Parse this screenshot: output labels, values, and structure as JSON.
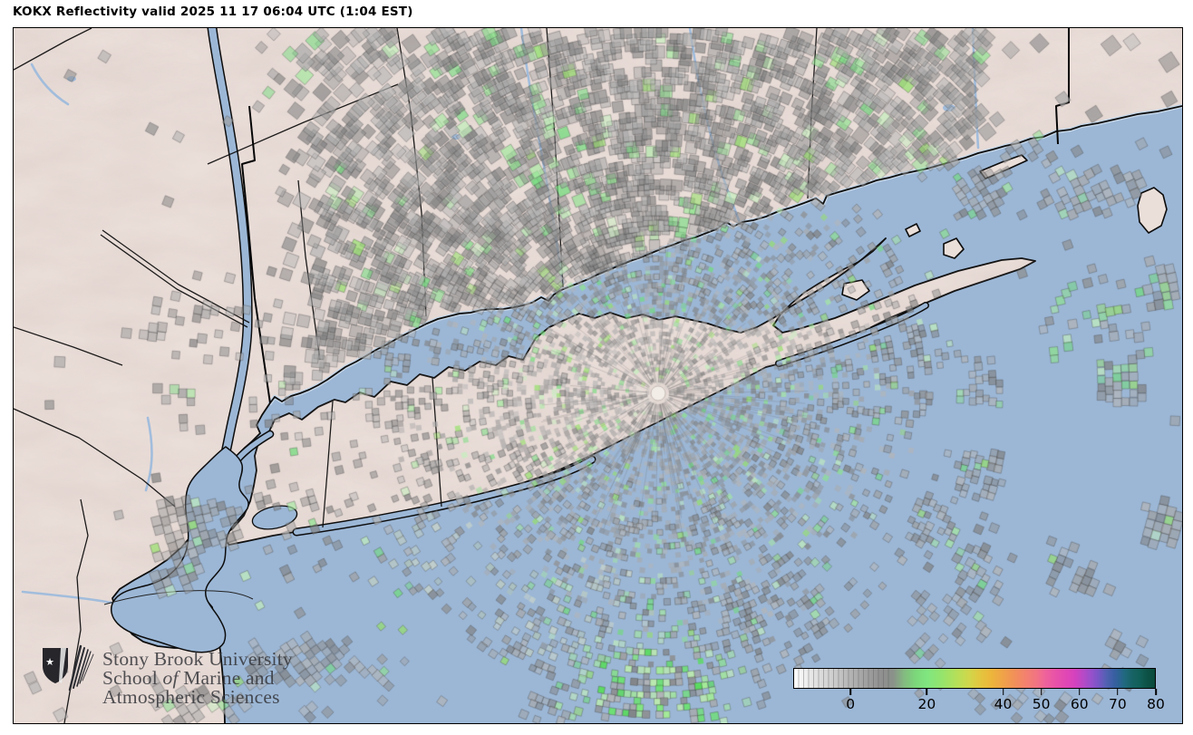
{
  "header": {
    "title": "KOKX Reflectivity valid 2025 11 17 06:04 UTC (1:04 EST)"
  },
  "radar": {
    "site": "KOKX",
    "product": "Reflectivity",
    "valid_utc": "2025 11 17 06:04 UTC",
    "valid_local": "1:04 EST"
  },
  "colorbar": {
    "min": -15,
    "max": 80,
    "tick_labels": [
      "0",
      "20",
      "40",
      "50",
      "60",
      "70",
      "80"
    ],
    "tick_values": [
      0,
      20,
      40,
      50,
      60,
      70,
      80
    ],
    "stops": [
      {
        "v": -15,
        "c": "#ffffff"
      },
      {
        "v": -10,
        "c": "#e4e4e4"
      },
      {
        "v": -5,
        "c": "#cfcfcf"
      },
      {
        "v": 0,
        "c": "#b3b3b3"
      },
      {
        "v": 5,
        "c": "#9c9c9c"
      },
      {
        "v": 8,
        "c": "#909090"
      },
      {
        "v": 11,
        "c": "#8a908a"
      },
      {
        "v": 14,
        "c": "#83bb80"
      },
      {
        "v": 17,
        "c": "#7cd77a"
      },
      {
        "v": 20,
        "c": "#80e680"
      },
      {
        "v": 24,
        "c": "#95e46c"
      },
      {
        "v": 28,
        "c": "#b8df58"
      },
      {
        "v": 31,
        "c": "#d0d74b"
      },
      {
        "v": 34,
        "c": "#e3c63f"
      },
      {
        "v": 37,
        "c": "#edb53b"
      },
      {
        "v": 40,
        "c": "#f0a348"
      },
      {
        "v": 43,
        "c": "#f19059"
      },
      {
        "v": 46,
        "c": "#f3816f"
      },
      {
        "v": 49,
        "c": "#f27384"
      },
      {
        "v": 51,
        "c": "#ef639a"
      },
      {
        "v": 54,
        "c": "#e851a9"
      },
      {
        "v": 57,
        "c": "#e046b6"
      },
      {
        "v": 59,
        "c": "#d442be"
      },
      {
        "v": 61,
        "c": "#b949c6"
      },
      {
        "v": 63,
        "c": "#9a50cb"
      },
      {
        "v": 65,
        "c": "#7b55c6"
      },
      {
        "v": 67,
        "c": "#5560b4"
      },
      {
        "v": 69,
        "c": "#3b60a4"
      },
      {
        "v": 70,
        "c": "#32619b"
      },
      {
        "v": 72,
        "c": "#20697f"
      },
      {
        "v": 74,
        "c": "#176365"
      },
      {
        "v": 76,
        "c": "#115f58"
      },
      {
        "v": 78,
        "c": "#0d5145"
      },
      {
        "v": 80,
        "c": "#0a4a3c"
      }
    ]
  },
  "credit": {
    "line1": "Stony Brook University",
    "line2_before": "School ",
    "line2_italic": "of",
    "line2_after": " Marine and",
    "line3": "Atmospheric Sciences"
  },
  "map_colors": {
    "water": "#9cb7d6",
    "land": "#ebdfda",
    "coast": "#0c0c0c",
    "shallow": "#c6d7e8",
    "river": "#a2bddc"
  },
  "icons": {
    "logo": "stony-brook-shield"
  }
}
